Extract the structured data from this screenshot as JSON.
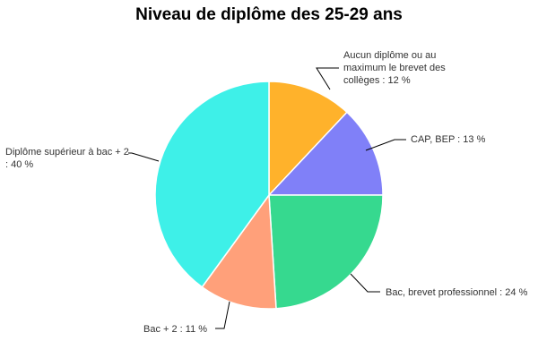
{
  "chart_data": {
    "type": "pie",
    "title": "Niveau de diplôme des 25-29 ans",
    "slices": [
      {
        "label": "Aucun diplôme ou au maximum le brevet des collèges : 12 %",
        "value": 12,
        "color": "#ffb22b"
      },
      {
        "label": "CAP, BEP : 13 %",
        "value": 13,
        "color": "#8080f8"
      },
      {
        "label": "Bac, brevet professionnel : 24 %",
        "value": 24,
        "color": "#36d98f"
      },
      {
        "label": "Bac + 2 : 11 %",
        "value": 11,
        "color": "#ffa07a"
      },
      {
        "label": "Diplôme supérieur à bac + 2 : 40 %",
        "value": 40,
        "color": "#3ef0e8"
      }
    ]
  }
}
